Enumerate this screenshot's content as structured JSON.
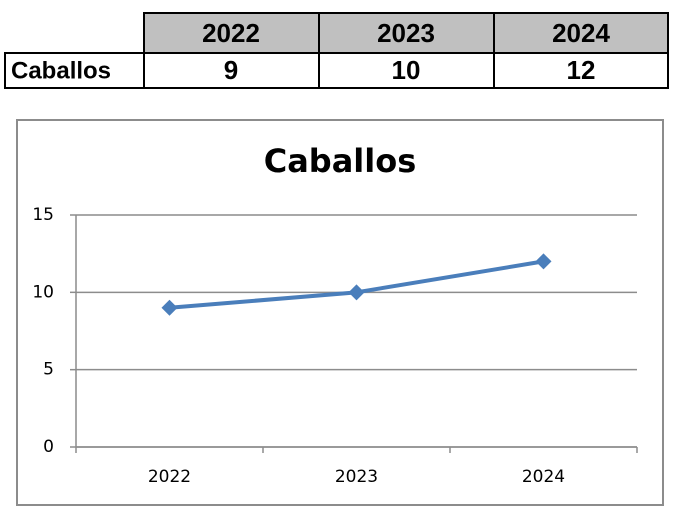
{
  "table": {
    "header": [
      "2022",
      "2023",
      "2024"
    ],
    "rows": [
      [
        "Caballos",
        9,
        10,
        12
      ]
    ]
  },
  "chart_data": {
    "type": "line",
    "title": "Caballos",
    "categories": [
      "2022",
      "2023",
      "2024"
    ],
    "values": [
      9,
      10,
      12
    ],
    "color": "#4a7ebb",
    "ylim": [
      0,
      15
    ],
    "yticks": [
      0,
      5,
      10,
      15
    ],
    "grid": true
  }
}
